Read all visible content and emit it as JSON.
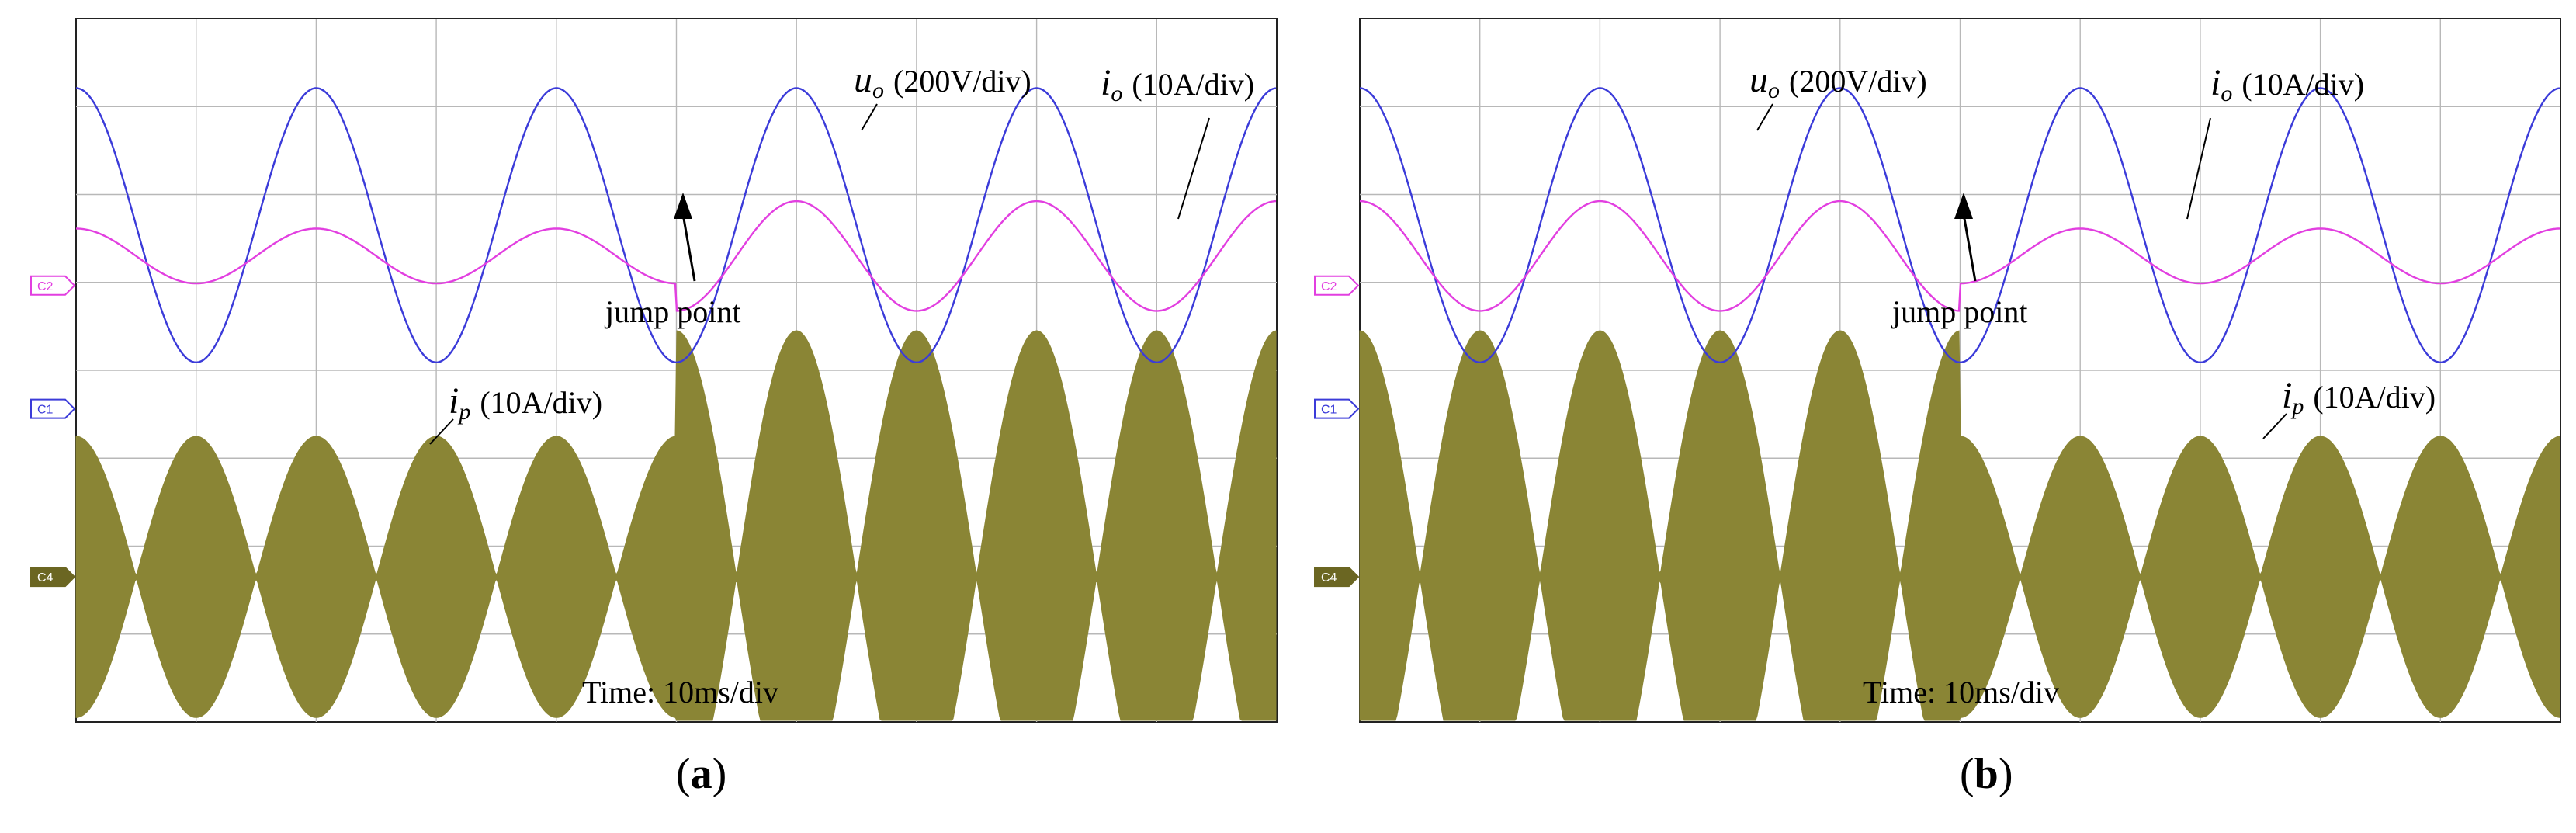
{
  "colors": {
    "uo": "#3b3bd9",
    "io": "#e23fe0",
    "ip": "#8a8535",
    "grid": "#b8b8b8",
    "frame": "#222222",
    "marker_c1": "#3b3bd9",
    "marker_c2": "#e23fe0",
    "marker_c4": "#6b6622"
  },
  "chart_data": [
    {
      "type": "line",
      "panel_label": "a",
      "grid": true,
      "grid_divisions": {
        "x": 10,
        "y": 8
      },
      "time_label": "Time: 10ms/div",
      "time_per_div_ms": 10,
      "channel_markers": [
        "C2",
        "C1",
        "C4"
      ],
      "annotation": "jump point",
      "jump_time_ms": 50,
      "series": [
        {
          "name": "uo (200V/div)",
          "symbol": "u",
          "subscript": "o",
          "scale": "(200V/div)",
          "channel": "C1",
          "freq_hz": 50,
          "amplitude_div": 2.0,
          "amplitude_after_div": 2.0
        },
        {
          "name": "io (10A/div)",
          "symbol": "i",
          "subscript": "o",
          "scale": "(10A/div)",
          "channel": "C2",
          "freq_hz": 50,
          "amplitude_div": 0.4,
          "amplitude_after_div": 0.8
        },
        {
          "name": "ip (10A/div)",
          "symbol": "i",
          "subscript": "p",
          "scale": "(10A/div)",
          "channel": "C4",
          "envelope_freq_hz": 100,
          "amplitude_div": 1.6,
          "amplitude_after_div": 2.8
        }
      ]
    },
    {
      "type": "line",
      "panel_label": "b",
      "grid": true,
      "grid_divisions": {
        "x": 10,
        "y": 8
      },
      "time_label": "Time: 10ms/div",
      "time_per_div_ms": 10,
      "channel_markers": [
        "C2",
        "C1",
        "C4"
      ],
      "annotation": "jump point",
      "jump_time_ms": 50,
      "series": [
        {
          "name": "uo (200V/div)",
          "symbol": "u",
          "subscript": "o",
          "scale": "(200V/div)",
          "channel": "C1",
          "freq_hz": 50,
          "amplitude_div": 2.0,
          "amplitude_after_div": 2.0
        },
        {
          "name": "io (10A/div)",
          "symbol": "i",
          "subscript": "o",
          "scale": "(10A/div)",
          "channel": "C2",
          "freq_hz": 50,
          "amplitude_div": 0.8,
          "amplitude_after_div": 0.4
        },
        {
          "name": "ip (10A/div)",
          "symbol": "i",
          "subscript": "p",
          "scale": "(10A/div)",
          "channel": "C4",
          "envelope_freq_hz": 100,
          "amplitude_div": 2.8,
          "amplitude_after_div": 1.6
        }
      ]
    }
  ]
}
